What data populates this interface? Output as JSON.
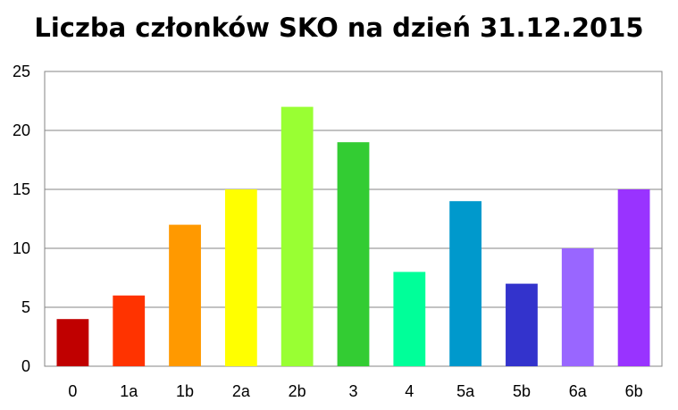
{
  "chart_data": {
    "type": "bar",
    "title": "Liczba członków SKO na dzień 31.12.2015",
    "xlabel": "",
    "ylabel": "",
    "categories": [
      "0",
      "1a",
      "1b",
      "2a",
      "2b",
      "3",
      "4",
      "5a",
      "5b",
      "6a",
      "6b"
    ],
    "values": [
      4,
      6,
      12,
      15,
      22,
      19,
      8,
      14,
      7,
      10,
      15
    ],
    "colors": [
      "#c00000",
      "#ff3300",
      "#ff9900",
      "#ffff00",
      "#99ff33",
      "#33cc33",
      "#00ff99",
      "#0099cc",
      "#3333cc",
      "#9966ff",
      "#9933ff"
    ],
    "ylim": [
      0,
      25
    ],
    "yticks": [
      0,
      5,
      10,
      15,
      20,
      25
    ],
    "grid": true,
    "legend": "none"
  }
}
